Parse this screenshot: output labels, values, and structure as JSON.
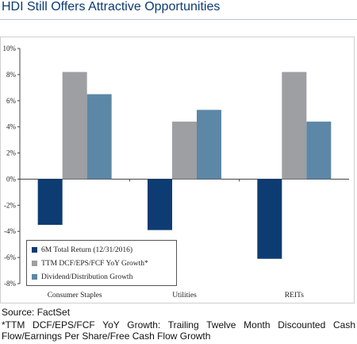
{
  "title": "HDI Still Offers Attractive Opportunities",
  "source": "Source: FactSet",
  "footnote": "*TTM DCF/EPS/FCF YoY Growth: Trailing Twelve Month Discounted Cash Flow/Earnings Per Share/Free Cash Flow Growth",
  "chart_data": {
    "type": "bar",
    "categories": [
      "Consumer Staples",
      "Utilities",
      "REITs"
    ],
    "series": [
      {
        "name": "6M Total Return (12/31/2016)",
        "color": "#0d3c72",
        "values": [
          -3.5,
          -3.9,
          -6.1
        ]
      },
      {
        "name": "TTM DCF/EPS/FCF YoY Growth*",
        "color": "#9d9fa2",
        "values": [
          8.2,
          4.4,
          8.2
        ]
      },
      {
        "name": "Dividend/Distribution Growth",
        "color": "#5d87a6",
        "values": [
          6.5,
          5.3,
          4.4
        ]
      }
    ],
    "ylim": [
      -8,
      10
    ],
    "yticks": [
      -8,
      -6,
      -4,
      -2,
      0,
      2,
      4,
      6,
      8,
      10
    ],
    "ytick_labels": [
      "-8%",
      "-6%",
      "-4%",
      "-2%",
      "0%",
      "2%",
      "4%",
      "6%",
      "8%",
      "10%"
    ],
    "legend_position": "bottom-left",
    "grid": false
  }
}
